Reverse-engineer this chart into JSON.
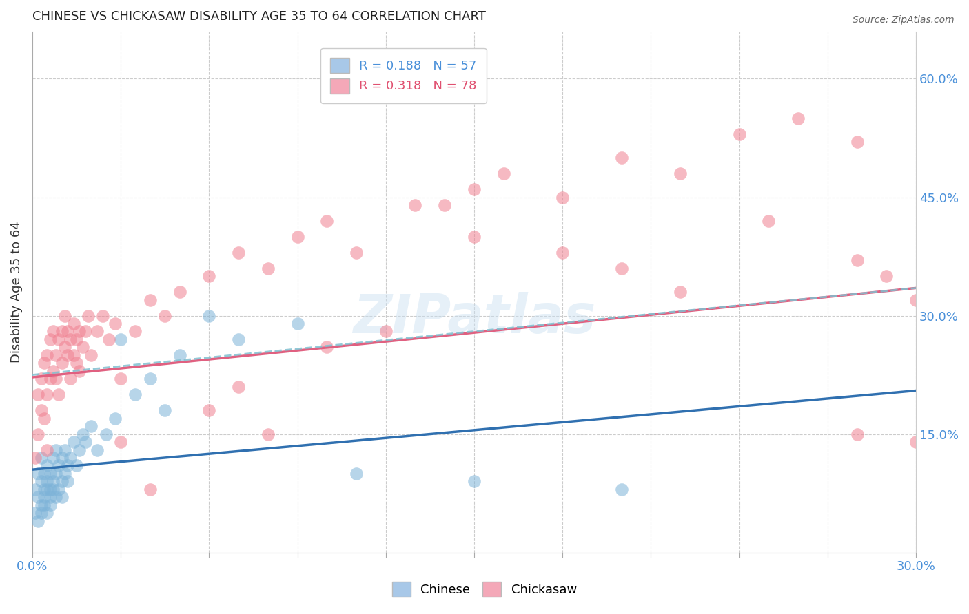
{
  "title": "CHINESE VS CHICKASAW DISABILITY AGE 35 TO 64 CORRELATION CHART",
  "source": "Source: ZipAtlas.com",
  "ylabel": "Disability Age 35 to 64",
  "right_yticks": [
    0.0,
    0.15,
    0.3,
    0.45,
    0.6
  ],
  "right_yticklabels": [
    "",
    "15.0%",
    "30.0%",
    "45.0%",
    "60.0%"
  ],
  "xmin": 0.0,
  "xmax": 0.3,
  "ymin": 0.0,
  "ymax": 0.66,
  "chinese_color": "#7db3d8",
  "chickasaw_color": "#f08090",
  "chinese_line_color": "#3070b0",
  "chickasaw_line_color": "#e06080",
  "dashed_line_color": "#80c0d0",
  "watermark_color": "#c8dff0",
  "grid_color": "#cccccc",
  "background_color": "#ffffff",
  "legend_r1": "R = 0.188   N = 57",
  "legend_r2": "R = 0.318   N = 78",
  "legend_color1": "#4a90d9",
  "legend_color2": "#e05070",
  "bottom_legend_labels": [
    "Chinese",
    "Chickasaw"
  ],
  "watermark": "ZIPatlas",
  "chinese_scatter_x": [
    0.001,
    0.001,
    0.002,
    0.002,
    0.002,
    0.003,
    0.003,
    0.003,
    0.003,
    0.004,
    0.004,
    0.004,
    0.004,
    0.005,
    0.005,
    0.005,
    0.005,
    0.006,
    0.006,
    0.006,
    0.006,
    0.007,
    0.007,
    0.007,
    0.008,
    0.008,
    0.008,
    0.009,
    0.009,
    0.01,
    0.01,
    0.01,
    0.011,
    0.011,
    0.012,
    0.012,
    0.013,
    0.014,
    0.015,
    0.016,
    0.017,
    0.018,
    0.02,
    0.022,
    0.025,
    0.028,
    0.03,
    0.035,
    0.04,
    0.045,
    0.05,
    0.06,
    0.07,
    0.09,
    0.11,
    0.15,
    0.2
  ],
  "chinese_scatter_y": [
    0.05,
    0.08,
    0.04,
    0.07,
    0.1,
    0.06,
    0.09,
    0.12,
    0.05,
    0.07,
    0.08,
    0.1,
    0.06,
    0.08,
    0.09,
    0.11,
    0.05,
    0.08,
    0.1,
    0.07,
    0.06,
    0.09,
    0.12,
    0.08,
    0.1,
    0.13,
    0.07,
    0.11,
    0.08,
    0.09,
    0.12,
    0.07,
    0.1,
    0.13,
    0.09,
    0.11,
    0.12,
    0.14,
    0.11,
    0.13,
    0.15,
    0.14,
    0.16,
    0.13,
    0.15,
    0.17,
    0.27,
    0.2,
    0.22,
    0.18,
    0.25,
    0.3,
    0.27,
    0.29,
    0.1,
    0.09,
    0.08
  ],
  "chickasaw_scatter_x": [
    0.001,
    0.002,
    0.002,
    0.003,
    0.003,
    0.004,
    0.004,
    0.005,
    0.005,
    0.005,
    0.006,
    0.006,
    0.007,
    0.007,
    0.008,
    0.008,
    0.009,
    0.009,
    0.01,
    0.01,
    0.011,
    0.011,
    0.012,
    0.012,
    0.013,
    0.013,
    0.014,
    0.014,
    0.015,
    0.015,
    0.016,
    0.016,
    0.017,
    0.018,
    0.019,
    0.02,
    0.022,
    0.024,
    0.026,
    0.028,
    0.03,
    0.035,
    0.04,
    0.045,
    0.05,
    0.06,
    0.07,
    0.08,
    0.09,
    0.1,
    0.11,
    0.13,
    0.15,
    0.16,
    0.18,
    0.2,
    0.22,
    0.24,
    0.26,
    0.28,
    0.15,
    0.2,
    0.25,
    0.28,
    0.29,
    0.1,
    0.12,
    0.18,
    0.22,
    0.06,
    0.08,
    0.04,
    0.03,
    0.07,
    0.14,
    0.3,
    0.28,
    0.3
  ],
  "chickasaw_scatter_y": [
    0.12,
    0.15,
    0.2,
    0.18,
    0.22,
    0.17,
    0.24,
    0.2,
    0.25,
    0.13,
    0.22,
    0.27,
    0.23,
    0.28,
    0.25,
    0.22,
    0.27,
    0.2,
    0.24,
    0.28,
    0.26,
    0.3,
    0.25,
    0.28,
    0.27,
    0.22,
    0.29,
    0.25,
    0.27,
    0.24,
    0.28,
    0.23,
    0.26,
    0.28,
    0.3,
    0.25,
    0.28,
    0.3,
    0.27,
    0.29,
    0.22,
    0.28,
    0.32,
    0.3,
    0.33,
    0.35,
    0.38,
    0.36,
    0.4,
    0.42,
    0.38,
    0.44,
    0.46,
    0.48,
    0.45,
    0.5,
    0.48,
    0.53,
    0.55,
    0.52,
    0.4,
    0.36,
    0.42,
    0.37,
    0.35,
    0.26,
    0.28,
    0.38,
    0.33,
    0.18,
    0.15,
    0.08,
    0.14,
    0.21,
    0.44,
    0.14,
    0.15,
    0.32
  ],
  "blue_line_x0": 0.0,
  "blue_line_y0": 0.105,
  "blue_line_x1": 0.3,
  "blue_line_y1": 0.205,
  "pink_line_x0": 0.0,
  "pink_line_y0": 0.222,
  "pink_line_x1": 0.3,
  "pink_line_y1": 0.335,
  "dashed_line_x0": 0.0,
  "dashed_line_y0": 0.225,
  "dashed_line_x1": 0.3,
  "dashed_line_y1": 0.335
}
